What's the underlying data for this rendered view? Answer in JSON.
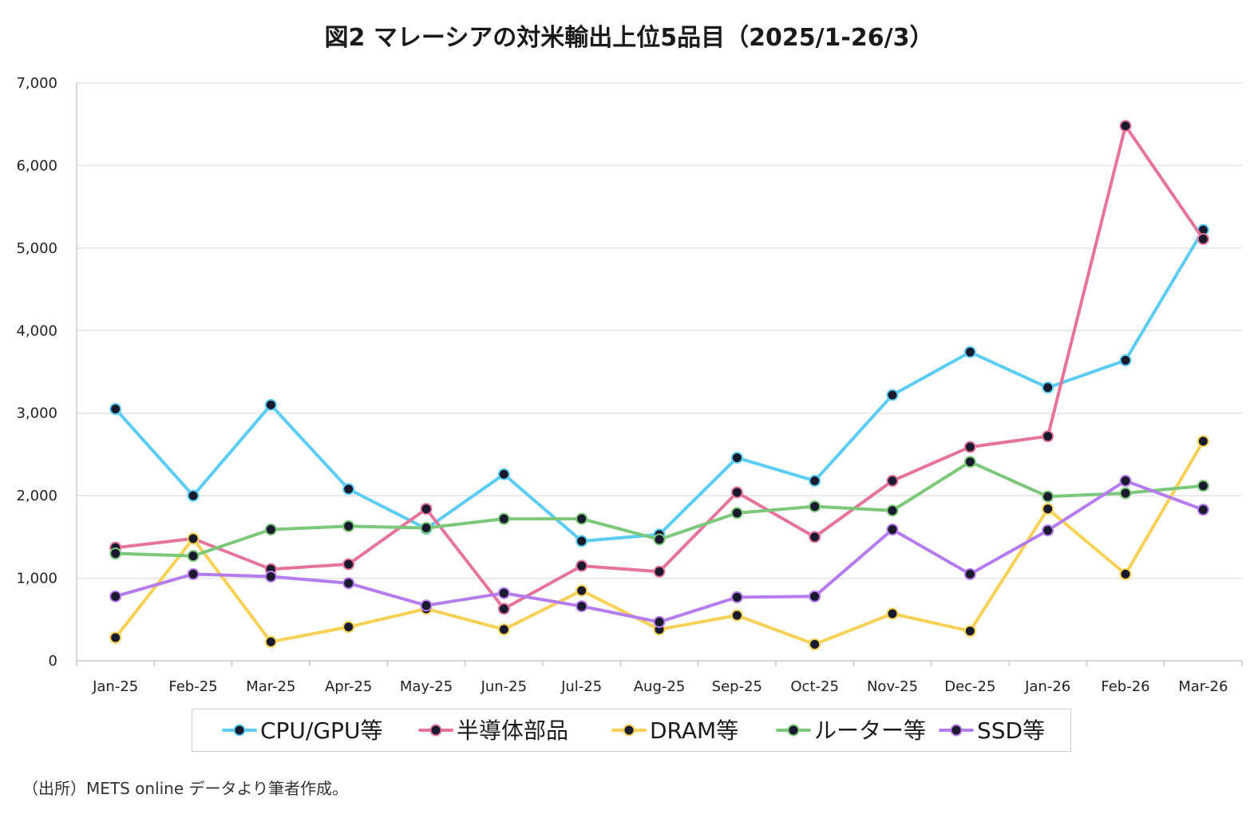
{
  "chart_data": {
    "type": "line",
    "title": "図2 マレーシアの対米輸出上位5品目（2025/1-26/3）",
    "xlabel": "",
    "ylabel": "",
    "ylim": [
      0,
      7000
    ],
    "yticks": [
      0,
      1000,
      2000,
      3000,
      4000,
      5000,
      6000,
      7000
    ],
    "ytick_labels": [
      "0",
      "1,000",
      "2,000",
      "3,000",
      "4,000",
      "5,000",
      "6,000",
      "7,000"
    ],
    "grid": true,
    "legend_position": "bottom",
    "categories": [
      "Jan-25",
      "Feb-25",
      "Mar-25",
      "Apr-25",
      "May-25",
      "Jun-25",
      "Jul-25",
      "Aug-25",
      "Sep-25",
      "Oct-25",
      "Nov-25",
      "Dec-25",
      "Jan-26",
      "Feb-26",
      "Mar-26"
    ],
    "series": [
      {
        "name": "CPU/GPU等",
        "color": "#5bcdf4",
        "values": [
          3050,
          2000,
          3100,
          2080,
          1600,
          2260,
          1450,
          1530,
          2460,
          2180,
          3220,
          3740,
          3310,
          3640,
          5220
        ]
      },
      {
        "name": "半導体部品",
        "color": "#e6739a",
        "values": [
          1370,
          1480,
          1110,
          1170,
          1840,
          630,
          1150,
          1080,
          2040,
          1500,
          2180,
          2590,
          2720,
          6480,
          5110
        ]
      },
      {
        "name": "DRAM等",
        "color": "#f6d155",
        "values": [
          280,
          1480,
          230,
          410,
          630,
          380,
          850,
          380,
          550,
          200,
          570,
          360,
          1840,
          1050,
          2660
        ]
      },
      {
        "name": "ルーター等",
        "color": "#7cc87a",
        "values": [
          1300,
          1270,
          1590,
          1630,
          1610,
          1720,
          1720,
          1470,
          1790,
          1870,
          1820,
          2410,
          1990,
          2030,
          2120
        ]
      },
      {
        "name": "SSD等",
        "color": "#b57cf0",
        "values": [
          780,
          1050,
          1020,
          940,
          670,
          820,
          660,
          470,
          770,
          780,
          1590,
          1050,
          1580,
          2180,
          1830
        ]
      }
    ],
    "marker_color": "#1a1a2e",
    "source_note": "（出所）METS online データより筆者作成。"
  }
}
